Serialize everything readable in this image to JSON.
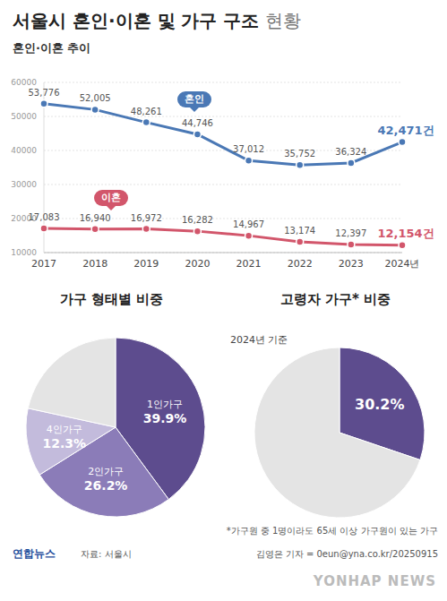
{
  "title": "서울시 혼인·이혼 및 가구 구조",
  "title_suffix": "현황",
  "chart_data": [
    {
      "type": "line",
      "title": "혼인·이혼 추이",
      "categories": [
        "2017",
        "2018",
        "2019",
        "2020",
        "2021",
        "2022",
        "2023",
        "2024년"
      ],
      "series": [
        {
          "name": "혼인",
          "color": "#4a78b5",
          "values": [
            53776,
            52005,
            48261,
            44746,
            37012,
            35752,
            36324,
            42471
          ],
          "value_labels": [
            "53,776",
            "52,005",
            "48,261",
            "44,746",
            "37,012",
            "35,752",
            "36,324",
            "42,471건"
          ]
        },
        {
          "name": "이혼",
          "color": "#d2566b",
          "values": [
            17083,
            16940,
            16972,
            16282,
            14967,
            13174,
            12397,
            12154
          ],
          "value_labels": [
            "17,083",
            "16,940",
            "16,972",
            "16,282",
            "14,967",
            "13,174",
            "12,397",
            "12,154건"
          ]
        }
      ],
      "ylim": [
        10000,
        60000
      ],
      "yticks": [
        10000,
        20000,
        30000,
        40000,
        50000,
        60000
      ],
      "grid": true,
      "data_labels": true,
      "marker": "circle"
    },
    {
      "type": "pie",
      "title": "가구 형태별 비중",
      "categories": [
        "1인가구",
        "2인가구",
        "4인가구",
        null
      ],
      "values": [
        39.9,
        26.2,
        12.3,
        21.6
      ],
      "value_labels": [
        "39.9%",
        "26.2%",
        "12.3%",
        null
      ],
      "colors": [
        "#5d4c8e",
        "#8b7cb8",
        "#c3bbdc",
        "#e4e4e4"
      ],
      "data_labels": true
    },
    {
      "type": "pie",
      "title": "고령자 가구* 비중",
      "subtitle": "2024년 기준",
      "categories": [
        null,
        null
      ],
      "values": [
        30.2,
        69.8
      ],
      "value_labels": [
        "30.2%",
        null
      ],
      "colors": [
        "#5d4c8e",
        "#e4e4e4"
      ],
      "data_labels": true
    }
  ],
  "footnote": "*가구원 중 1명이라도 65세 이상 가구원이 있는 가구",
  "logo": "연합뉴스",
  "source": "자료: 서울시",
  "credit": "김영은 기자 = 0eun@yna.co.kr/20250915",
  "watermark": "YONHAP NEWS"
}
